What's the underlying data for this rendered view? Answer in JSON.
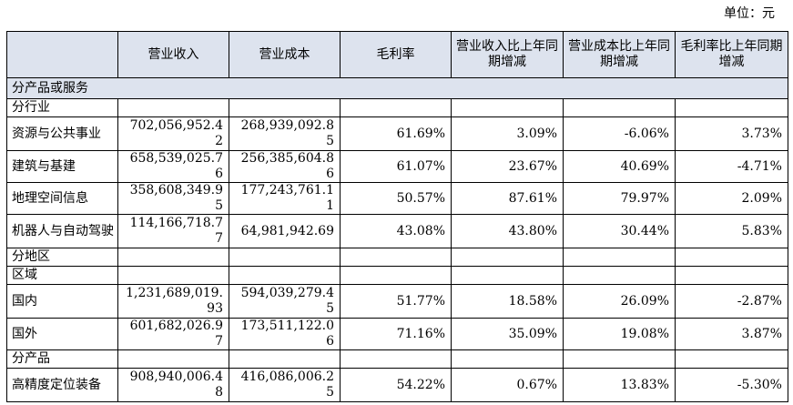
{
  "unit_label": "单位：元",
  "columns": [
    "",
    "营业收入",
    "营业成本",
    "毛利率",
    "营业收入比上年同期增减",
    "营业成本比上年同期增减",
    "毛利率比上年同期增减"
  ],
  "section_title": "分产品或服务",
  "groups": [
    {
      "title": "分行业",
      "rows": [
        {
          "name": "资源与公共事业",
          "revenue": "702,056,952.42",
          "cost": "268,939,092.85",
          "margin": "61.69%",
          "rev_chg": "3.09%",
          "cost_chg": "-6.06%",
          "margin_chg": "3.73%"
        },
        {
          "name": "建筑与基建",
          "revenue": "658,539,025.76",
          "cost": "256,385,604.86",
          "margin": "61.07%",
          "rev_chg": "23.67%",
          "cost_chg": "40.69%",
          "margin_chg": "-4.71%"
        },
        {
          "name": "地理空间信息",
          "revenue": "358,608,349.95",
          "cost": "177,243,761.11",
          "margin": "50.57%",
          "rev_chg": "87.61%",
          "cost_chg": "79.97%",
          "margin_chg": "2.09%"
        },
        {
          "name": "机器人与自动驾驶",
          "revenue": "114,166,718.77",
          "cost": "64,981,942.69",
          "margin": "43.08%",
          "rev_chg": "43.80%",
          "cost_chg": "30.44%",
          "margin_chg": "5.83%"
        }
      ]
    },
    {
      "title": "分地区",
      "subtitle": "区域",
      "rows": [
        {
          "name": "国内",
          "revenue": "1,231,689,019.93",
          "cost": "594,039,279.45",
          "margin": "51.77%",
          "rev_chg": "18.58%",
          "cost_chg": "26.09%",
          "margin_chg": "-2.87%"
        },
        {
          "name": "国外",
          "revenue": "601,682,026.97",
          "cost": "173,511,122.06",
          "margin": "71.16%",
          "rev_chg": "35.09%",
          "cost_chg": "19.08%",
          "margin_chg": "3.87%"
        }
      ]
    },
    {
      "title": "分产品",
      "rows": [
        {
          "name": "高精度定位装备",
          "revenue": "908,940,006.48",
          "cost": "416,086,006.25",
          "margin": "54.22%",
          "rev_chg": "0.67%",
          "cost_chg": "13.83%",
          "margin_chg": "-5.30%"
        }
      ]
    }
  ]
}
